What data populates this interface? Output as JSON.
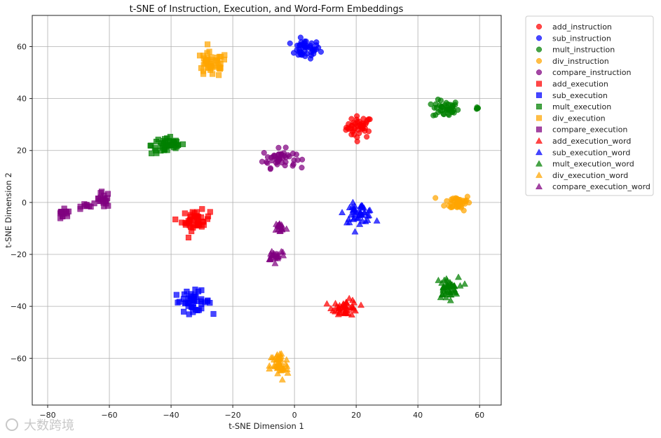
{
  "chart_data": {
    "type": "scatter",
    "title": "t-SNE of Instruction, Execution, and Word-Form Embeddings",
    "xlabel": "t-SNE Dimension 1",
    "ylabel": "t-SNE Dimension 2",
    "xlim": [
      -85,
      67
    ],
    "ylim": [
      -78,
      72
    ],
    "xticks": [
      -80,
      -60,
      -40,
      -20,
      0,
      20,
      40,
      60
    ],
    "yticks": [
      -60,
      -40,
      -20,
      0,
      20,
      40,
      60
    ],
    "grid": true,
    "legend_position": "outside-top-right",
    "colors": {
      "add": "#ff0000",
      "sub": "#0000ff",
      "mult": "#008000",
      "div": "#ffa500",
      "compare": "#800080"
    },
    "series": [
      {
        "name": "add_instruction",
        "color": "add",
        "marker": "circle",
        "center": [
          21,
          29
        ],
        "spread": [
          3.5,
          3.5
        ],
        "count": 45
      },
      {
        "name": "sub_instruction",
        "color": "sub",
        "marker": "circle",
        "center": [
          3.5,
          59
        ],
        "spread": [
          4,
          3
        ],
        "count": 45
      },
      {
        "name": "mult_instruction",
        "color": "mult",
        "marker": "circle",
        "center": [
          49,
          36
        ],
        "spread": [
          3.5,
          2.8
        ],
        "count": 40
      },
      {
        "name": "mult_instruction",
        "color": "mult",
        "marker": "circle",
        "center": [
          59,
          36.5
        ],
        "spread": [
          0.8,
          0.5
        ],
        "count": 5,
        "legend": false
      },
      {
        "name": "div_instruction",
        "color": "div",
        "marker": "circle",
        "center": [
          53,
          0
        ],
        "spread": [
          3.5,
          2.5
        ],
        "count": 45
      },
      {
        "name": "compare_instruction",
        "color": "compare",
        "marker": "circle",
        "center": [
          -5,
          17
        ],
        "spread": [
          4.5,
          3
        ],
        "count": 45
      },
      {
        "name": "add_execution",
        "color": "add",
        "marker": "square",
        "center": [
          -32,
          -7
        ],
        "spread": [
          3.8,
          3.2
        ],
        "count": 45
      },
      {
        "name": "sub_execution",
        "color": "sub",
        "marker": "square",
        "center": [
          -33,
          -38
        ],
        "spread": [
          5,
          3.2
        ],
        "count": 45
      },
      {
        "name": "mult_execution",
        "color": "mult",
        "marker": "square",
        "center": [
          -41,
          22
        ],
        "spread": [
          4.5,
          2.8
        ],
        "count": 45
      },
      {
        "name": "div_execution",
        "color": "div",
        "marker": "square",
        "center": [
          -27,
          53
        ],
        "spread": [
          4.5,
          4
        ],
        "count": 45
      },
      {
        "name": "compare_execution",
        "color": "compare",
        "marker": "square",
        "center": [
          -62,
          1
        ],
        "spread": [
          1.8,
          2.5
        ],
        "count": 20
      },
      {
        "name": "compare_execution",
        "color": "compare",
        "marker": "square",
        "center": [
          -75,
          -5
        ],
        "spread": [
          2,
          1.8
        ],
        "count": 15,
        "legend": false
      },
      {
        "name": "compare_execution",
        "color": "compare",
        "marker": "square",
        "center": [
          -67,
          -1
        ],
        "spread": [
          1.8,
          1
        ],
        "count": 8,
        "legend": false
      },
      {
        "name": "add_execution_word",
        "color": "add",
        "marker": "triangle",
        "center": [
          16.5,
          -40.5
        ],
        "spread": [
          3.5,
          2.5
        ],
        "count": 45
      },
      {
        "name": "sub_execution_word",
        "color": "sub",
        "marker": "triangle",
        "center": [
          21,
          -4
        ],
        "spread": [
          4,
          3
        ],
        "count": 45
      },
      {
        "name": "mult_execution_word",
        "color": "mult",
        "marker": "triangle",
        "center": [
          49.5,
          -33
        ],
        "spread": [
          3,
          3.5
        ],
        "count": 45
      },
      {
        "name": "div_execution_word",
        "color": "div",
        "marker": "triangle",
        "center": [
          -5,
          -63
        ],
        "spread": [
          2.5,
          4.8
        ],
        "count": 45
      },
      {
        "name": "compare_execution_word",
        "color": "compare",
        "marker": "triangle",
        "center": [
          -4.5,
          -9.5
        ],
        "spread": [
          1.5,
          1.8
        ],
        "count": 20
      },
      {
        "name": "compare_execution_word",
        "color": "compare",
        "marker": "triangle",
        "center": [
          -6,
          -20
        ],
        "spread": [
          2.5,
          2
        ],
        "count": 22,
        "legend": false
      }
    ]
  },
  "watermark": "大数跨境"
}
